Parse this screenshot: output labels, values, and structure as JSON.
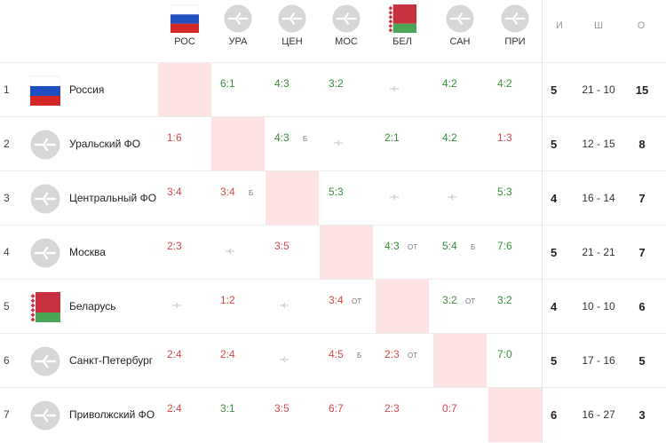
{
  "headers": [
    {
      "short": "РОС",
      "flag": "russia"
    },
    {
      "short": "УРА",
      "flag": "generic"
    },
    {
      "short": "ЦЕН",
      "flag": "generic"
    },
    {
      "short": "МОС",
      "flag": "generic"
    },
    {
      "short": "БЕЛ",
      "flag": "belarus"
    },
    {
      "short": "САН",
      "flag": "generic"
    },
    {
      "short": "ПРИ",
      "flag": "generic"
    }
  ],
  "stat_headers": {
    "wins": "И",
    "goals": "Ш",
    "points": "О"
  },
  "colors": {
    "win": "#3c8c3c",
    "loss": "#d24a4a",
    "self_cell": "#fde3e3",
    "generic_icon": "#d6d6d6"
  },
  "icons": {
    "generic": "team-placeholder-icon",
    "dash": "no-match-icon"
  },
  "rows": [
    {
      "num": "1",
      "name": "Россия",
      "flag": "russia",
      "wins": "5",
      "goals": "21 - 10",
      "points": "15",
      "cells": [
        {
          "type": "self"
        },
        {
          "s": "6:1",
          "r": "win"
        },
        {
          "s": "4:3",
          "r": "win"
        },
        {
          "s": "3:2",
          "r": "win"
        },
        {
          "type": "none"
        },
        {
          "s": "4:2",
          "r": "win"
        },
        {
          "s": "4:2",
          "r": "win"
        }
      ]
    },
    {
      "num": "2",
      "name": "Уральский ФО",
      "flag": "generic",
      "wins": "5",
      "goals": "12 - 15",
      "points": "8",
      "cells": [
        {
          "s": "1:6",
          "r": "loss"
        },
        {
          "type": "self"
        },
        {
          "s": "4:3",
          "r": "win",
          "n": "Б"
        },
        {
          "type": "none"
        },
        {
          "s": "2:1",
          "r": "win"
        },
        {
          "s": "4:2",
          "r": "win"
        },
        {
          "s": "1:3",
          "r": "loss"
        }
      ]
    },
    {
      "num": "3",
      "name": "Центральный ФО",
      "flag": "generic",
      "wins": "4",
      "goals": "16 - 14",
      "points": "7",
      "cells": [
        {
          "s": "3:4",
          "r": "loss"
        },
        {
          "s": "3:4",
          "r": "loss",
          "n": "Б"
        },
        {
          "type": "self"
        },
        {
          "s": "5:3",
          "r": "win"
        },
        {
          "type": "none"
        },
        {
          "type": "none"
        },
        {
          "s": "5:3",
          "r": "win"
        }
      ]
    },
    {
      "num": "4",
      "name": "Москва",
      "flag": "generic",
      "wins": "5",
      "goals": "21 - 21",
      "points": "7",
      "cells": [
        {
          "s": "2:3",
          "r": "loss"
        },
        {
          "type": "none"
        },
        {
          "s": "3:5",
          "r": "loss"
        },
        {
          "type": "self"
        },
        {
          "s": "4:3",
          "r": "win",
          "n": "ОТ"
        },
        {
          "s": "5:4",
          "r": "win",
          "n": "Б"
        },
        {
          "s": "7:6",
          "r": "win"
        }
      ]
    },
    {
      "num": "5",
      "name": "Беларусь",
      "flag": "belarus",
      "wins": "4",
      "goals": "10 - 10",
      "points": "6",
      "cells": [
        {
          "type": "none"
        },
        {
          "s": "1:2",
          "r": "loss"
        },
        {
          "type": "none"
        },
        {
          "s": "3:4",
          "r": "loss",
          "n": "ОТ"
        },
        {
          "type": "self"
        },
        {
          "s": "3:2",
          "r": "win",
          "n": "ОТ"
        },
        {
          "s": "3:2",
          "r": "win"
        }
      ]
    },
    {
      "num": "6",
      "name": "Санкт-Петербург",
      "flag": "generic",
      "wins": "5",
      "goals": "17 - 16",
      "points": "5",
      "cells": [
        {
          "s": "2:4",
          "r": "loss"
        },
        {
          "s": "2:4",
          "r": "loss"
        },
        {
          "type": "none"
        },
        {
          "s": "4:5",
          "r": "loss",
          "n": "Б"
        },
        {
          "s": "2:3",
          "r": "loss",
          "n": "ОТ"
        },
        {
          "type": "self"
        },
        {
          "s": "7:0",
          "r": "win"
        }
      ]
    },
    {
      "num": "7",
      "name": "Приволжский ФО",
      "flag": "generic",
      "wins": "6",
      "goals": "16 - 27",
      "points": "3",
      "cells": [
        {
          "s": "2:4",
          "r": "loss"
        },
        {
          "s": "3:1",
          "r": "win"
        },
        {
          "s": "3:5",
          "r": "loss"
        },
        {
          "s": "6:7",
          "r": "loss"
        },
        {
          "s": "2:3",
          "r": "loss"
        },
        {
          "s": "0:7",
          "r": "loss"
        },
        {
          "type": "self"
        }
      ]
    }
  ]
}
